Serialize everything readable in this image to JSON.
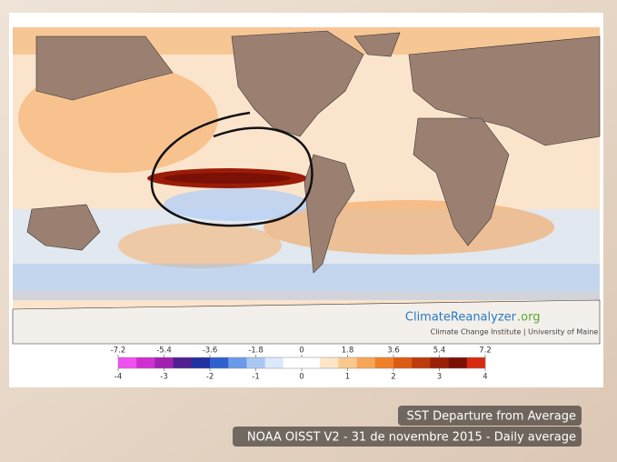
{
  "colorbar": {
    "xlim": [
      -4,
      4
    ],
    "xticks": [
      -4,
      -3,
      -2,
      -1,
      0,
      1,
      2,
      3,
      4
    ],
    "x2lim": [
      -7.2,
      7.2
    ],
    "x2ticks": [
      -7.2,
      -5.4,
      -3.6,
      -1.8,
      0,
      1.8,
      3.6,
      5.4,
      7.2
    ],
    "colors": [
      "#f050f0",
      "#d030d0",
      "#a020b0",
      "#502090",
      "#2030a0",
      "#3060d0",
      "#6a9ae8",
      "#a8c8f4",
      "#dbe9fb",
      "#ffffff",
      "#ffffff",
      "#fde6c6",
      "#fbc88e",
      "#f7a658",
      "#f08028",
      "#dc5a12",
      "#bc3a0c",
      "#9a2008",
      "#7a1006",
      "#d82a10"
    ]
  },
  "logo": {
    "name": "ClimateReanalyzer",
    "suffix": ".org",
    "subtitle": "Climate Change Institute | University of Maine"
  },
  "caption": {
    "line1": "SST Departure from Average",
    "line2": "NOAA OISST V2 - 31 de novembre 2015 - Daily average"
  }
}
